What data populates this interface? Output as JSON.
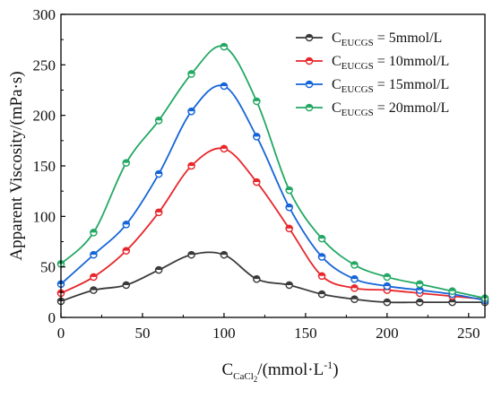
{
  "chart_data": {
    "type": "line",
    "xlabel": {
      "base": "C",
      "sub": "CaCl",
      "sub2": "2",
      "rest": "/(mmol·L",
      "sup": "-1",
      "close": ")"
    },
    "ylabel": "Apparent Viscosity/(mPa·s)",
    "xlim": [
      0,
      260
    ],
    "ylim": [
      0,
      300
    ],
    "x_ticks": [
      0,
      50,
      100,
      150,
      200,
      250
    ],
    "y_ticks": [
      0,
      50,
      100,
      150,
      200,
      250,
      300
    ],
    "grid": false,
    "legend_position": "top-right",
    "x": [
      0,
      20,
      40,
      60,
      80,
      100,
      120,
      140,
      160,
      180,
      200,
      220,
      240,
      260
    ],
    "series": [
      {
        "label_base": "C",
        "label_sub": "EUCGS",
        "label_rest": " = 5mmol/L",
        "color": "#3a3a3a",
        "values": [
          16,
          27,
          32,
          47,
          62,
          62,
          38,
          32,
          23,
          18,
          15,
          15,
          15,
          15
        ]
      },
      {
        "label_base": "C",
        "label_sub": "EUCGS",
        "label_rest": " = 10mmol/L",
        "color": "#e8262a",
        "values": [
          24,
          40,
          66,
          104,
          150,
          167,
          134,
          88,
          41,
          29,
          27,
          24,
          21,
          18
        ]
      },
      {
        "label_base": "C",
        "label_sub": "EUCGS",
        "label_rest": " = 15mmol/L",
        "color": "#1565d8",
        "values": [
          33,
          62,
          92,
          142,
          204,
          229,
          179,
          109,
          60,
          38,
          31,
          27,
          23,
          17
        ]
      },
      {
        "label_base": "C",
        "label_sub": "EUCGS",
        "label_rest": " = 20mmol/L",
        "color": "#23a864",
        "values": [
          53,
          84,
          153,
          195,
          241,
          268,
          214,
          126,
          78,
          52,
          40,
          33,
          26,
          19
        ]
      }
    ]
  }
}
